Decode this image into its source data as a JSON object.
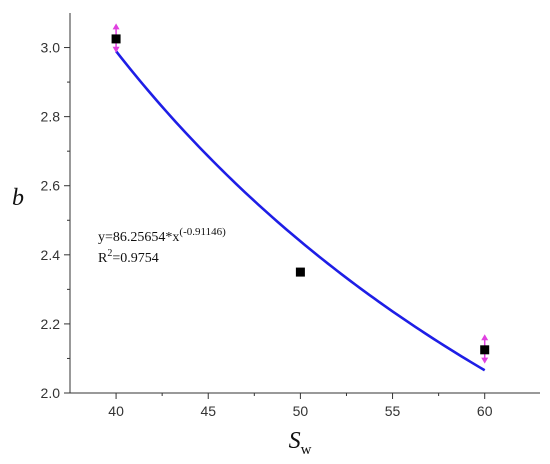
{
  "chart_data": {
    "type": "scatter",
    "xlabel": "S",
    "xlabel_sub": "w",
    "ylabel": "b",
    "xlim": [
      37.5,
      63
    ],
    "ylim": [
      2.0,
      3.1
    ],
    "x_ticks": [
      40,
      45,
      50,
      55,
      60
    ],
    "y_ticks": [
      2.0,
      2.2,
      2.4,
      2.6,
      2.8,
      3.0
    ],
    "x_tick_labels": [
      "40",
      "45",
      "50",
      "55",
      "60"
    ],
    "y_tick_labels": [
      "2.0",
      "2.2",
      "2.4",
      "2.6",
      "2.8",
      "3.0"
    ],
    "points": [
      {
        "x": 40,
        "y": 3.025,
        "err_up": 0.045,
        "err_down": 0.04
      },
      {
        "x": 50,
        "y": 2.35
      },
      {
        "x": 60,
        "y": 2.125,
        "err_up": 0.045,
        "err_down": 0.04
      }
    ],
    "fit": {
      "a": 86.25654,
      "b": -0.91146,
      "x_from": 40,
      "x_to": 60,
      "equation_main": "y=86.25654*x",
      "equation_exp": "(-0.91146)",
      "r2_main": "R",
      "r2_exp": "2",
      "r2_value": "=0.9754"
    },
    "grid": false,
    "colors": {
      "fit_line": "#1e1ee6",
      "marker": "#000000",
      "error_bar": "#e040e0",
      "axis": "#333333"
    }
  }
}
